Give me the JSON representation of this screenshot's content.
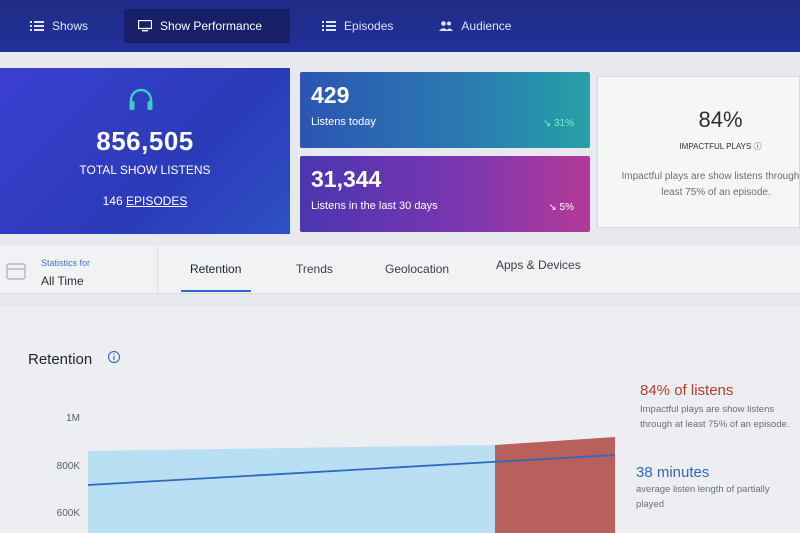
{
  "nav": {
    "shows": "Shows",
    "performance": "Show Performance",
    "episodes": "Episodes",
    "audience": "Audience"
  },
  "total": {
    "value": "856,505",
    "label": "TOTAL SHOW LISTENS",
    "episodes_count": "146",
    "episodes_link": "EPISODES"
  },
  "today": {
    "value": "429",
    "label": "Listens today",
    "delta": "↘ 31%"
  },
  "last30": {
    "value": "31,344",
    "label": "Listens in the last 30 days",
    "delta": "↘ 5%"
  },
  "impact": {
    "value": "84%",
    "label": "IMPACTFUL PLAYS ⓘ",
    "desc": "Impactful plays are show listens through at least 75% of an episode."
  },
  "stats": {
    "label": "Statistics for",
    "value": "All Time"
  },
  "tabs": [
    "Retention",
    "Trends",
    "Geolocation",
    "Apps & Devices"
  ],
  "retention": {
    "title": "Retention",
    "pct": "84% of listens",
    "pct_desc": "Impactful plays are show listens through at least 75% of an episode.",
    "minutes": "38 minutes",
    "minutes_desc": "average listen length of partially played"
  },
  "chart_data": {
    "type": "area",
    "title": "Retention",
    "ylabel": "",
    "y_ticks": [
      "1M",
      "800K",
      "600K"
    ],
    "ylim": [
      600000,
      1000000
    ]
  },
  "colors": {
    "nav_bg": "#22309a",
    "accent_blue": "#2f64d8",
    "impact_red": "#b53c2e",
    "minutes_blue": "#2f69c0",
    "area_blue": "#b9dff2",
    "area_red": "#b8605b"
  }
}
